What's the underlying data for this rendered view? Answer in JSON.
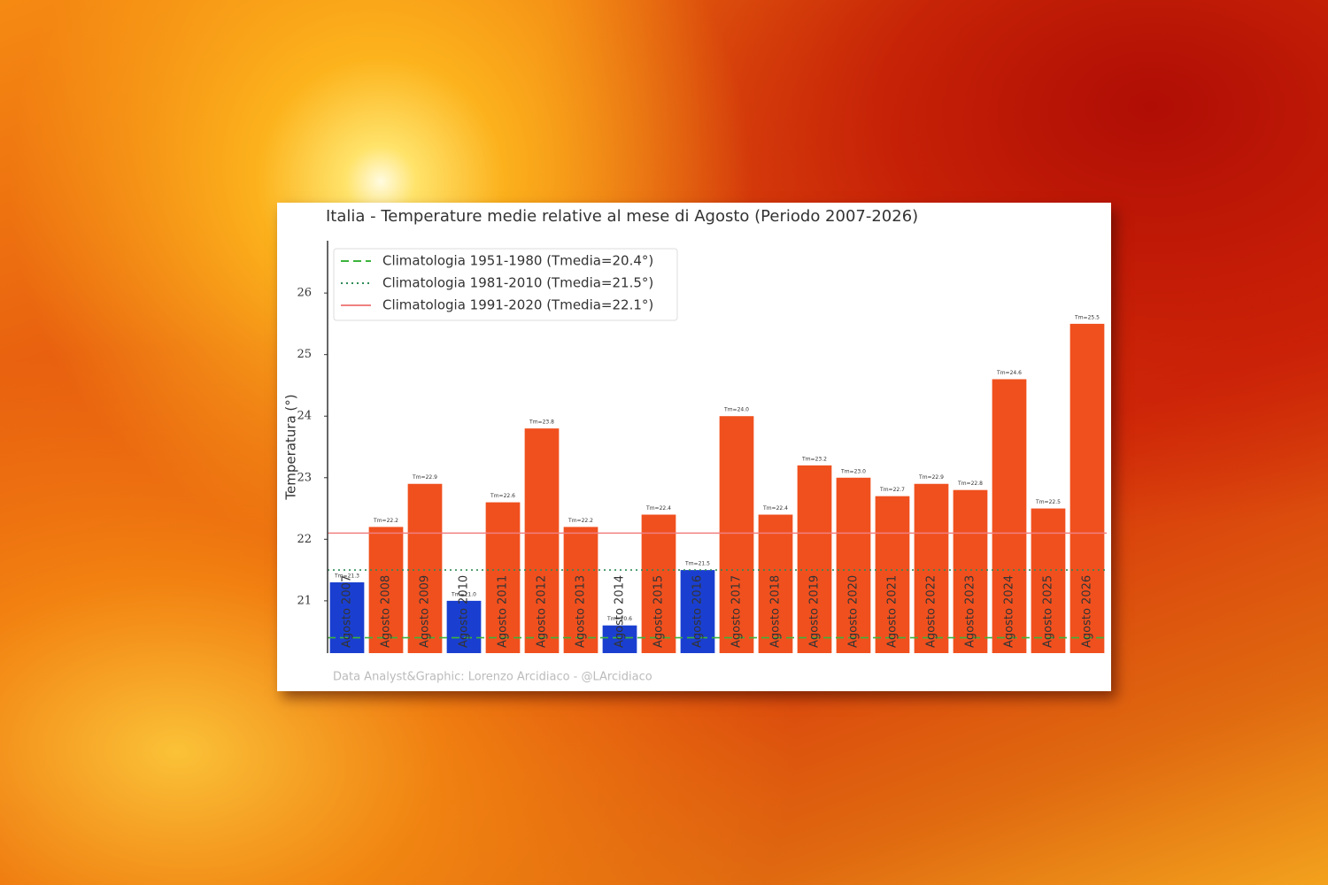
{
  "chart_data": {
    "type": "bar",
    "title": "Italia - Temperature medie relative al mese di Agosto (Periodo 2007-2026)",
    "y_label": "Temperatura (°)",
    "footer": "Data Analyst&Graphic: Lorenzo Arcidiaco - @LArcidiaco",
    "categories": [
      "Agosto 2007",
      "Agosto 2008",
      "Agosto 2009",
      "Agosto 2010",
      "Agosto 2011",
      "Agosto 2012",
      "Agosto 2013",
      "Agosto 2014",
      "Agosto 2015",
      "Agosto 2016",
      "Agosto 2017",
      "Agosto 2018",
      "Agosto 2019",
      "Agosto 2020",
      "Agosto 2021",
      "Agosto 2022",
      "Agosto 2023",
      "Agosto 2024",
      "Agosto 2025",
      "Agosto 2026"
    ],
    "values": [
      21.3,
      22.2,
      22.9,
      21.0,
      22.6,
      23.8,
      22.2,
      20.6,
      22.4,
      21.5,
      24.0,
      22.4,
      23.2,
      23.0,
      22.7,
      22.9,
      22.8,
      24.6,
      22.5,
      25.5
    ],
    "value_labels": [
      "Tm=21.3",
      "Tm=22.2",
      "Tm=22.9",
      "Tm=21.0",
      "Tm=22.6",
      "Tm=23.8",
      "Tm=22.2",
      "Tm=20.6",
      "Tm=22.4",
      "Tm=21.5",
      "Tm=24.0",
      "Tm=22.4",
      "Tm=23.2",
      "Tm=23.0",
      "Tm=22.7",
      "Tm=22.9",
      "Tm=22.8",
      "Tm=24.6",
      "Tm=22.5",
      "Tm=25.5"
    ],
    "colors": [
      "#1a3fd0",
      "#f0501e",
      "#f0501e",
      "#1a3fd0",
      "#f0501e",
      "#f0501e",
      "#f0501e",
      "#1a3fd0",
      "#f0501e",
      "#1a3fd0",
      "#f0501e",
      "#f0501e",
      "#f0501e",
      "#f0501e",
      "#f0501e",
      "#f0501e",
      "#f0501e",
      "#f0501e",
      "#f0501e",
      "#f0501e"
    ],
    "reference_lines": [
      {
        "name": "Climatologia 1951-1980 (Tmedia=20.4°)",
        "value": 20.4,
        "color": "#3cb43c",
        "style": "dashed"
      },
      {
        "name": "Climatologia 1981-2010 (Tmedia=21.5°)",
        "value": 21.5,
        "color": "#2e8b57",
        "style": "dotted"
      },
      {
        "name": "Climatologia 1991-2020 (Tmedia=22.1°)",
        "value": 22.1,
        "color": "#f08080",
        "style": "solid"
      }
    ],
    "ylim": [
      20.15,
      26.85
    ],
    "yticks": [
      21,
      22,
      23,
      24,
      25,
      26
    ],
    "legend": "upper-left"
  }
}
